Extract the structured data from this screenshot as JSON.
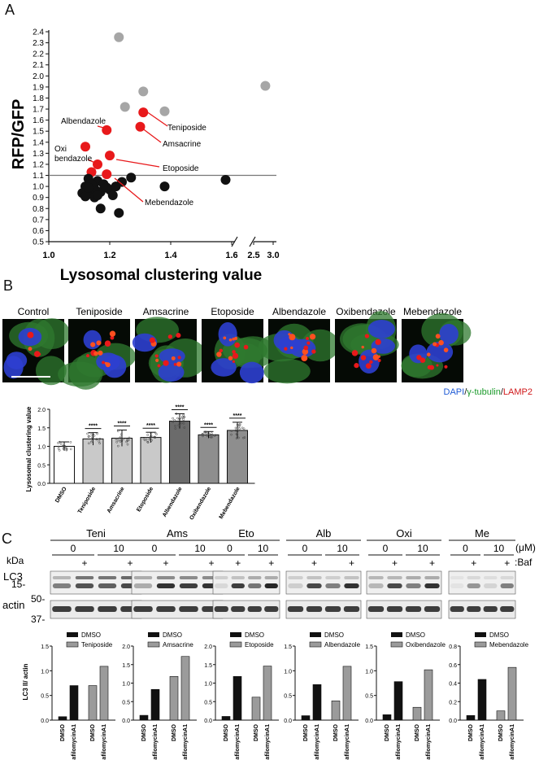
{
  "panels": {
    "a": "A",
    "b": "B",
    "c": "C"
  },
  "panel_a": {
    "ylabel": "RFP/GFP",
    "xlabel": "Lysosomal clustering value",
    "yticks": [
      "0.5",
      "0.6",
      "0.7",
      "0.8",
      "0.9",
      "1.0",
      "1.1",
      "1.2",
      "1.3",
      "1.4",
      "1.5",
      "1.6",
      "1.7",
      "1.8",
      "1.9",
      "2.0",
      "2.1",
      "2.2",
      "2.3",
      "2.4"
    ],
    "xticks": [
      "1.0",
      "1.2",
      "1.4",
      "1.6",
      "2.5",
      "3.0"
    ],
    "annotations": [
      "Teniposide",
      "Amsacrine",
      "Albendazole",
      "Oxi",
      "bendazole",
      "Etoposide",
      "Mebendazole"
    ]
  },
  "panel_b": {
    "image_labels": [
      "Control",
      "Teniposide",
      "Amsacrine",
      "Etoposide",
      "Albendazole",
      "Oxibendazole",
      "Mebendazole"
    ],
    "stain_legend": {
      "dapi": "DAPI",
      "tubulin": "γ-tubulin",
      "lamp2": "LAMP2",
      "slash": "/"
    },
    "star_marker": "****"
  },
  "panel_c": {
    "groups": [
      "Teni",
      "Ams",
      "Eto",
      "Alb",
      "Oxi",
      "Me"
    ],
    "dose_labels": [
      "0",
      "10"
    ],
    "dose_unit": "(μM)",
    "baf_plus": "+",
    "baf_label": ":Baf",
    "kda_label": "kDa",
    "lc3_label": "LC3",
    "actin_label": "actin",
    "mw_markers": [
      "15-",
      "50-",
      "37-"
    ],
    "ylabel": "LC3 II/ actin",
    "legend_dmso": "DMSO",
    "xticks": [
      "DMSO",
      "BafilomycinA1",
      "DMSO",
      "BafilomycinA1"
    ]
  },
  "chart_data": [
    {
      "type": "scatter",
      "xlabel": "Lysosomal clustering value",
      "ylabel": "RFP/GFP",
      "xlim": [
        1.0,
        3.0
      ],
      "ylim": [
        0.5,
        2.4
      ],
      "x_axis_break": [
        1.6,
        2.5
      ],
      "reference_line_y": 1.1,
      "series": [
        {
          "color": "#a6a6a6",
          "points": [
            [
              1.23,
              2.35
            ],
            [
              1.31,
              1.86
            ],
            [
              1.25,
              1.72
            ],
            [
              1.38,
              1.68
            ],
            [
              2.8,
              1.91
            ]
          ]
        },
        {
          "color": "#e8191b",
          "points": [
            [
              1.31,
              1.67
            ],
            [
              1.3,
              1.54
            ],
            [
              1.19,
              1.51
            ],
            [
              1.12,
              1.36
            ],
            [
              1.2,
              1.28
            ],
            [
              1.16,
              1.2
            ],
            [
              1.14,
              1.13
            ],
            [
              1.19,
              1.11
            ]
          ]
        },
        {
          "color": "#111111",
          "points": [
            [
              1.12,
              1.0
            ],
            [
              1.13,
              0.96
            ],
            [
              1.14,
              0.93
            ],
            [
              1.15,
              0.98
            ],
            [
              1.16,
              1.05
            ],
            [
              1.13,
              1.07
            ],
            [
              1.17,
              0.95
            ],
            [
              1.2,
              0.97
            ],
            [
              1.22,
              1.0
            ],
            [
              1.18,
              1.02
            ],
            [
              1.15,
              0.9
            ],
            [
              1.11,
              0.94
            ],
            [
              1.14,
              1.02
            ],
            [
              1.21,
              0.92
            ],
            [
              1.24,
              1.04
            ],
            [
              1.27,
              1.08
            ],
            [
              1.38,
              1.0
            ],
            [
              1.58,
              1.06
            ],
            [
              1.23,
              0.76
            ],
            [
              1.17,
              0.8
            ],
            [
              1.12,
              0.91
            ],
            [
              1.16,
              0.92
            ],
            [
              1.19,
              0.99
            ],
            [
              1.13,
              0.99
            ]
          ]
        }
      ]
    },
    {
      "type": "bar",
      "ylabel": "Lysosomal clustering value",
      "categories": [
        "DMSO",
        "Teniposide",
        "Amsacrine",
        "Etoposide",
        "Albendazole",
        "Oxibendazole",
        "Mebendazole"
      ],
      "values": [
        1.0,
        1.2,
        1.22,
        1.24,
        1.68,
        1.31,
        1.43
      ],
      "errors": [
        0.12,
        0.17,
        0.22,
        0.14,
        0.2,
        0.09,
        0.22
      ],
      "ylim": [
        0,
        2.0
      ],
      "yticks": [
        "0.0",
        "0.5",
        "1.0",
        "1.5",
        "2.0"
      ],
      "significance": [
        "",
        "****",
        "****",
        "****",
        "****",
        "****",
        "****"
      ]
    },
    {
      "type": "bar",
      "legend": [
        "DMSO",
        "Teniposide"
      ],
      "categories": [
        "DMSO",
        "BafilomycinA1",
        "DMSO",
        "BafilomycinA1"
      ],
      "values": [
        0.07,
        0.7,
        0.7,
        1.09
      ],
      "colors": [
        "#111",
        "#111",
        "#9b9b9b",
        "#9b9b9b"
      ],
      "ylim": [
        0,
        1.5
      ],
      "yticks": [
        "0.0",
        "0.5",
        "1.0",
        "1.5"
      ]
    },
    {
      "type": "bar",
      "legend": [
        "DMSO",
        "Amsacrine"
      ],
      "categories": [
        "DMSO",
        "BafilomycinA1",
        "DMSO",
        "BafilomycinA1"
      ],
      "values": [
        0.13,
        0.83,
        1.18,
        1.72
      ],
      "colors": [
        "#111",
        "#111",
        "#9b9b9b",
        "#9b9b9b"
      ],
      "ylim": [
        0,
        2.0
      ],
      "yticks": [
        "0.0",
        "0.5",
        "1.0",
        "1.5",
        "2.0"
      ]
    },
    {
      "type": "bar",
      "legend": [
        "DMSO",
        "Etoposide"
      ],
      "categories": [
        "DMSO",
        "BafilomycinA1",
        "DMSO",
        "BafilomycinA1"
      ],
      "values": [
        0.1,
        1.18,
        0.62,
        1.46
      ],
      "colors": [
        "#111",
        "#111",
        "#9b9b9b",
        "#9b9b9b"
      ],
      "ylim": [
        0,
        2.0
      ],
      "yticks": [
        "0.0",
        "0.5",
        "1.0",
        "1.5",
        "2.0"
      ]
    },
    {
      "type": "bar",
      "legend": [
        "DMSO",
        "Albendazole"
      ],
      "categories": [
        "DMSO",
        "BafilomycinA1",
        "DMSO",
        "BafilomycinA1"
      ],
      "values": [
        0.09,
        0.72,
        0.39,
        1.09
      ],
      "colors": [
        "#111",
        "#111",
        "#9b9b9b",
        "#9b9b9b"
      ],
      "ylim": [
        0,
        1.5
      ],
      "yticks": [
        "0.0",
        "0.5",
        "1.0",
        "1.5"
      ]
    },
    {
      "type": "bar",
      "legend": [
        "DMSO",
        "Oxibendazole"
      ],
      "categories": [
        "DMSO",
        "BafilomycinA1",
        "DMSO",
        "BafilomycinA1"
      ],
      "values": [
        0.11,
        0.78,
        0.26,
        1.02
      ],
      "colors": [
        "#111",
        "#111",
        "#9b9b9b",
        "#9b9b9b"
      ],
      "ylim": [
        0,
        1.5
      ],
      "yticks": [
        "0.0",
        "0.5",
        "1.0",
        "1.5"
      ]
    },
    {
      "type": "bar",
      "legend": [
        "DMSO",
        "Mebendazole"
      ],
      "categories": [
        "DMSO",
        "BafilomycinA1",
        "DMSO",
        "BafilomycinA1"
      ],
      "values": [
        0.05,
        0.44,
        0.1,
        0.57
      ],
      "colors": [
        "#111",
        "#111",
        "#9b9b9b",
        "#9b9b9b"
      ],
      "ylim": [
        0,
        0.8
      ],
      "yticks": [
        "0.0",
        "0.2",
        "0.4",
        "0.6",
        "0.8"
      ]
    }
  ]
}
